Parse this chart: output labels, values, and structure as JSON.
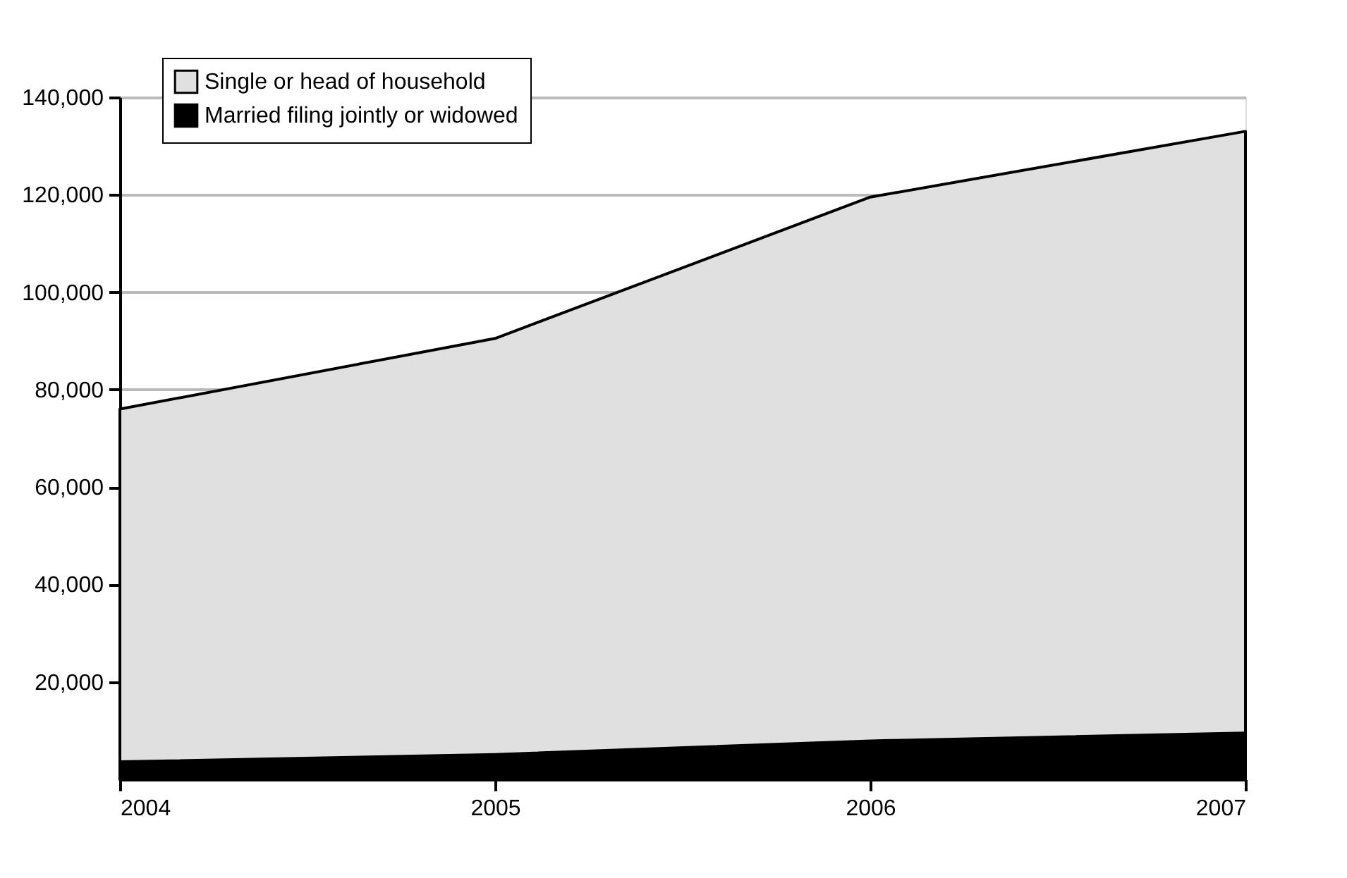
{
  "chart_data": {
    "type": "area",
    "x": [
      2004,
      2005,
      2006,
      2007
    ],
    "series": [
      {
        "name": "Single or head of household",
        "color": "#e0e0e0",
        "values": [
          76000,
          90500,
          119500,
          133000
        ]
      },
      {
        "name": "Married filing jointly or widowed",
        "color": "#000000",
        "values": [
          3600,
          5100,
          7900,
          9500
        ]
      }
    ],
    "xlim": [
      2004,
      2007
    ],
    "xticks": [
      2004,
      2005,
      2006,
      2007
    ],
    "ylim": [
      0,
      140000
    ],
    "yticks": [
      {
        "value": 20000,
        "label": "20,000"
      },
      {
        "value": 40000,
        "label": "40,000"
      },
      {
        "value": 60000,
        "label": "60,000"
      },
      {
        "value": 80000,
        "label": "80,000"
      },
      {
        "value": 100000,
        "label": "100,000"
      },
      {
        "value": 120000,
        "label": "120,000"
      },
      {
        "value": 140000,
        "label": "140,000"
      }
    ],
    "grid": "y",
    "legend": "top left"
  }
}
